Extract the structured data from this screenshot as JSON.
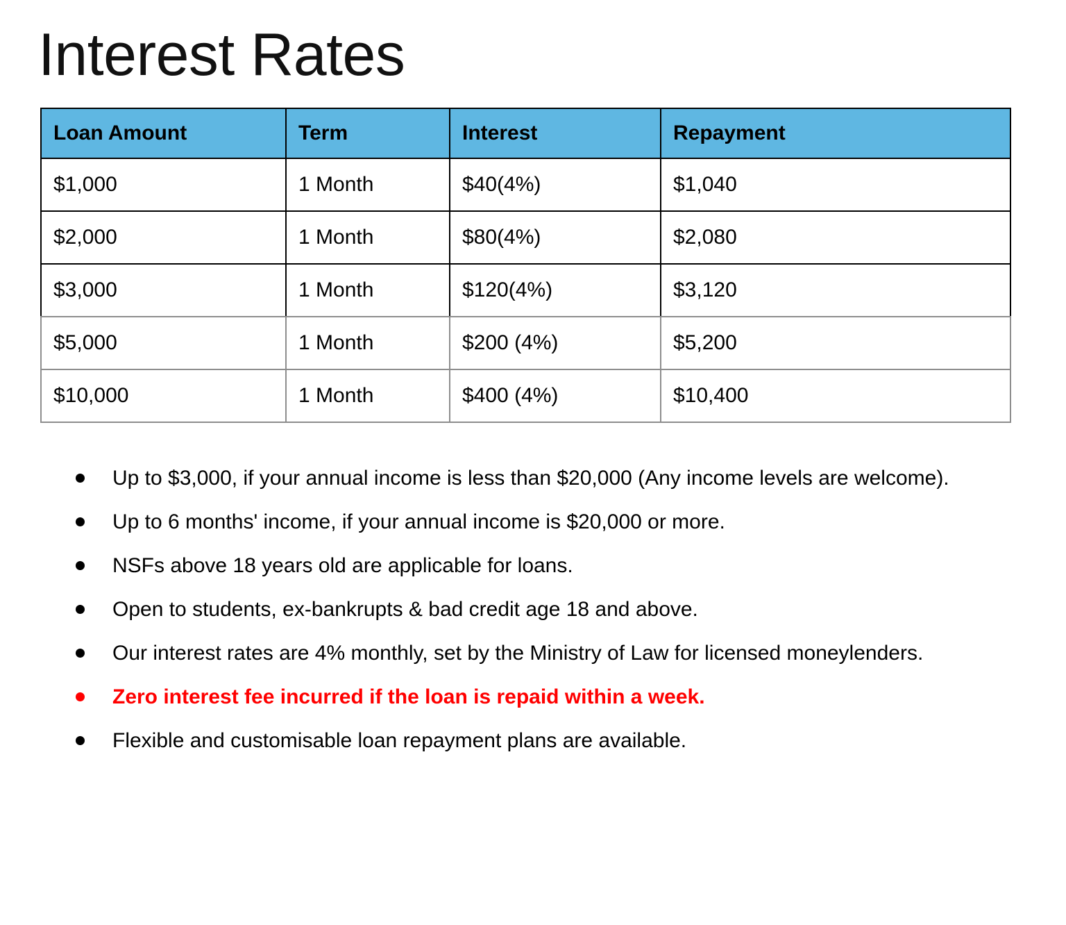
{
  "page": {
    "title": "Interest Rates"
  },
  "colors": {
    "table_header_bg": "#5fb7e2",
    "emphasis_text": "#ff0000",
    "border_dark": "#000000",
    "border_light": "#8d8d8d"
  },
  "table": {
    "headers": [
      "Loan Amount",
      "Term",
      "Interest",
      "Repayment"
    ],
    "rows": [
      [
        "$1,000",
        "1 Month",
        "$40(4%)",
        "$1,040"
      ],
      [
        "$2,000",
        "1 Month",
        "$80(4%)",
        "$2,080"
      ],
      [
        "$3,000",
        "1 Month",
        "$120(4%)",
        "$3,120"
      ],
      [
        "$5,000",
        "1 Month",
        "$200 (4%)",
        "$5,200"
      ],
      [
        "$10,000",
        "1 Month",
        "$400 (4%)",
        "$10,400"
      ]
    ]
  },
  "bullets": [
    {
      "text": "Up to $3,000, if your annual income is less than $20,000 (Any income levels are welcome).",
      "emphasis": false
    },
    {
      "text": "Up to 6 months' income, if your annual income is $20,000 or more.",
      "emphasis": false
    },
    {
      "text": "NSFs above 18 years old are applicable for loans.",
      "emphasis": false
    },
    {
      "text": "Open to students, ex-bankrupts & bad credit age 18 and above.",
      "emphasis": false
    },
    {
      "text": "Our interest rates are 4% monthly, set by the Ministry of Law for licensed moneylenders.",
      "emphasis": false
    },
    {
      "text": "Zero interest fee incurred if the loan is repaid within a week.",
      "emphasis": true
    },
    {
      "text": "Flexible and customisable loan repayment plans are available.",
      "emphasis": false
    }
  ]
}
